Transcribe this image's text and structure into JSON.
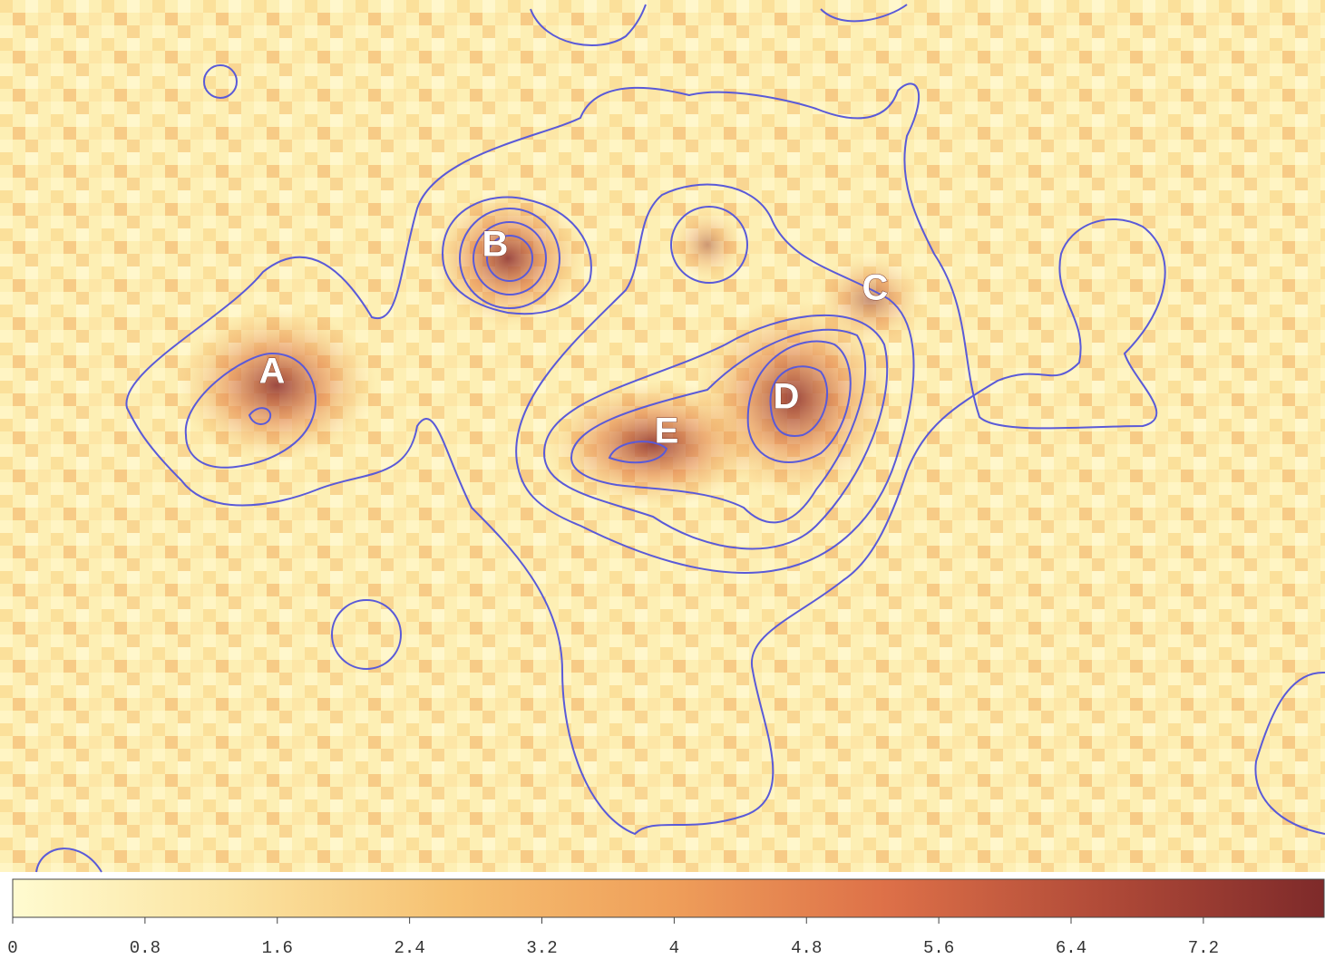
{
  "image": {
    "labels": [
      "A",
      "B",
      "C",
      "D",
      "E"
    ]
  },
  "colorbar": {
    "lim": [
      0,
      7.93
    ],
    "ticks": [
      0,
      0.8,
      1.6,
      2.4,
      3.2,
      4,
      4.8,
      5.6,
      6.4,
      7.2
    ],
    "colors": [
      "#fffbd0",
      "#fbe3a0",
      "#f6c172",
      "#ef9f5a",
      "#dd7048",
      "#b04a38",
      "#7e2a2a"
    ]
  }
}
